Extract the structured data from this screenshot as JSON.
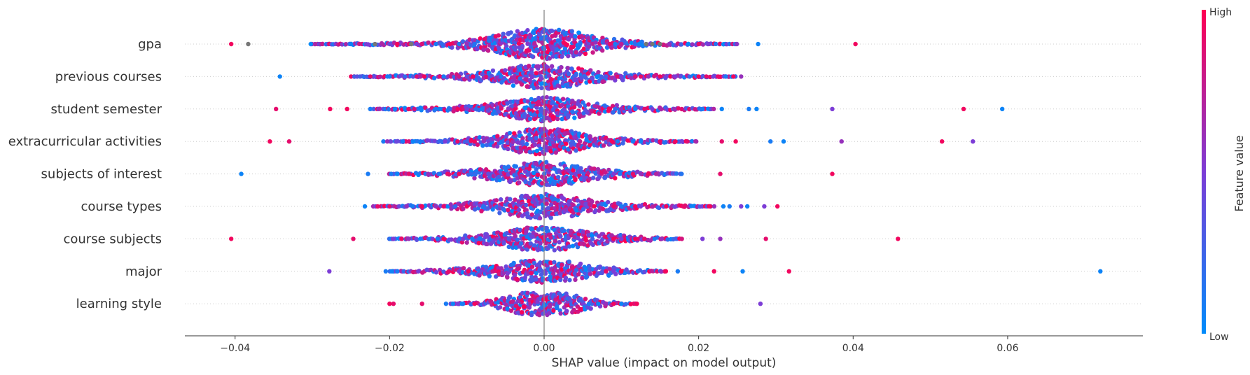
{
  "chart_data": {
    "type": "scatter",
    "subtype": "shap-beeswarm",
    "xlabel": "SHAP value (impact on model output)",
    "ylabel": "",
    "xlim": [
      -0.0465,
      0.0775
    ],
    "xticks": [
      -0.04,
      -0.02,
      0.0,
      0.02,
      0.04,
      0.06
    ],
    "xtick_labels": [
      "−0.04",
      "−0.02",
      "0.00",
      "0.02",
      "0.04",
      "0.06"
    ],
    "grid": false,
    "features": [
      "gpa",
      "previous courses",
      "student semester",
      "extracurricular activities",
      "subjects of interest",
      "course types",
      "course subjects",
      "major",
      "learning style"
    ],
    "colorbar": {
      "label": "Feature value",
      "high_label": "High",
      "low_label": "Low",
      "low_color": "#008bfb",
      "mid_color": "#7c3cd6",
      "high_color": "#ff0051",
      "missing_color": "#777777"
    },
    "series": [
      {
        "feature": "gpa",
        "points": [
          [
            -0.0405,
            0.95
          ],
          [
            -0.0383,
            null
          ],
          [
            -0.0302,
            0.0
          ],
          [
            -0.025,
            0.05
          ],
          [
            -0.0219,
            null
          ],
          [
            -0.02,
            0.45
          ],
          [
            -0.019,
            0.95
          ],
          [
            -0.0175,
            0.9
          ],
          [
            -0.0172,
            null
          ],
          [
            -0.0165,
            0.5
          ],
          [
            -0.0158,
            0.85
          ],
          [
            -0.014,
            0.1
          ],
          [
            -0.0132,
            0.2
          ],
          [
            -0.0122,
            0.95
          ],
          [
            -0.011,
            0.1
          ],
          [
            -0.01,
            0.6
          ],
          [
            -0.009,
            0.15
          ],
          [
            0.0085,
            0.9
          ],
          [
            0.0092,
            0.1
          ],
          [
            0.01,
            0.75
          ],
          [
            0.0118,
            0.2
          ],
          [
            0.0123,
            0.05
          ],
          [
            0.0132,
            null
          ],
          [
            0.014,
            null
          ],
          [
            0.015,
            null
          ],
          [
            0.0162,
            0.6
          ],
          [
            0.02,
            0.9
          ],
          [
            0.0212,
            0.5
          ],
          [
            0.0277,
            0.05
          ],
          [
            0.0403,
            0.95
          ]
        ],
        "density": [
          [
            -0.03,
            0.0
          ],
          [
            -0.015,
            0.15
          ],
          [
            -0.008,
            0.45
          ],
          [
            -0.004,
            1.0
          ],
          [
            0.0,
            1.25
          ],
          [
            0.004,
            1.0
          ],
          [
            0.008,
            0.45
          ],
          [
            0.015,
            0.12
          ],
          [
            0.025,
            0.0
          ]
        ]
      },
      {
        "feature": "previous courses",
        "points": [
          [
            -0.0342,
            0.05
          ],
          [
            -0.0225,
            0.9
          ],
          [
            -0.02,
            0.1
          ],
          [
            -0.018,
            0.2
          ],
          [
            -0.0165,
            0.85
          ],
          [
            -0.016,
            0.7
          ],
          [
            -0.0155,
            0.95
          ],
          [
            -0.0135,
            0.9
          ],
          [
            -0.013,
            0.1
          ],
          [
            -0.011,
            0.8
          ],
          [
            -0.01,
            0.4
          ],
          [
            -0.0092,
            0.95
          ],
          [
            0.008,
            0.3
          ],
          [
            0.0095,
            0.9
          ],
          [
            0.01,
            0.5
          ],
          [
            0.0118,
            0.85
          ],
          [
            0.0125,
            0.9
          ],
          [
            0.0135,
            0.6
          ],
          [
            0.015,
            0.95
          ],
          [
            0.017,
            0.5
          ],
          [
            0.02,
            0.95
          ],
          [
            0.021,
            0.9
          ],
          [
            0.0225,
            0.9
          ],
          [
            0.0235,
            0.1
          ],
          [
            0.0245,
            0.95
          ],
          [
            0.0255,
            0.6
          ]
        ],
        "density": [
          [
            -0.025,
            0.0
          ],
          [
            -0.012,
            0.2
          ],
          [
            -0.006,
            0.5
          ],
          [
            -0.003,
            0.85
          ],
          [
            0.0,
            1.0
          ],
          [
            0.003,
            0.85
          ],
          [
            0.006,
            0.5
          ],
          [
            0.012,
            0.2
          ],
          [
            0.025,
            0.0
          ]
        ]
      },
      {
        "feature": "student semester",
        "points": [
          [
            -0.0347,
            0.9
          ],
          [
            -0.0277,
            0.95
          ],
          [
            -0.0255,
            0.95
          ],
          [
            -0.0225,
            0.1
          ],
          [
            -0.0193,
            0.05
          ],
          [
            -0.0168,
            0.85
          ],
          [
            -0.014,
            0.1
          ],
          [
            -0.0135,
            0.05
          ],
          [
            -0.0112,
            0.95
          ],
          [
            -0.01,
            0.5
          ],
          [
            -0.0088,
            0.2
          ],
          [
            0.0085,
            0.95
          ],
          [
            0.0092,
            0.2
          ],
          [
            0.01,
            0.6
          ],
          [
            0.0118,
            0.1
          ],
          [
            0.013,
            0.9
          ],
          [
            0.014,
            0.5
          ],
          [
            0.0168,
            0.6
          ],
          [
            0.0205,
            0.1
          ],
          [
            0.023,
            0.05
          ],
          [
            0.0265,
            0.1
          ],
          [
            0.0275,
            0.05
          ],
          [
            0.0373,
            0.5
          ],
          [
            0.0543,
            0.95
          ],
          [
            0.0593,
            0.05
          ]
        ],
        "density": [
          [
            -0.022,
            0.0
          ],
          [
            -0.012,
            0.2
          ],
          [
            -0.006,
            0.45
          ],
          [
            -0.003,
            0.85
          ],
          [
            0.0,
            1.0
          ],
          [
            0.003,
            0.85
          ],
          [
            0.006,
            0.45
          ],
          [
            0.012,
            0.2
          ],
          [
            0.022,
            0.0
          ]
        ]
      },
      {
        "feature": "extracurricular activities",
        "points": [
          [
            -0.0355,
            0.95
          ],
          [
            -0.033,
            0.9
          ],
          [
            -0.0208,
            0.1
          ],
          [
            -0.0203,
            0.6
          ],
          [
            -0.0183,
            0.1
          ],
          [
            -0.0175,
            0.85
          ],
          [
            -0.017,
            0.05
          ],
          [
            -0.016,
            0.1
          ],
          [
            -0.0133,
            0.2
          ],
          [
            -0.0128,
            0.5
          ],
          [
            -0.0112,
            0.9
          ],
          [
            -0.01,
            0.3
          ],
          [
            -0.009,
            0.95
          ],
          [
            0.0088,
            0.95
          ],
          [
            0.0095,
            0.1
          ],
          [
            0.0115,
            0.1
          ],
          [
            0.0125,
            0.05
          ],
          [
            0.015,
            0.9
          ],
          [
            0.017,
            0.95
          ],
          [
            0.0185,
            0.9
          ],
          [
            0.023,
            0.9
          ],
          [
            0.0248,
            0.95
          ],
          [
            0.0293,
            0.1
          ],
          [
            0.031,
            0.05
          ],
          [
            0.0385,
            0.6
          ],
          [
            0.0515,
            0.95
          ],
          [
            0.0555,
            0.5
          ]
        ],
        "density": [
          [
            -0.02,
            0.0
          ],
          [
            -0.012,
            0.15
          ],
          [
            -0.006,
            0.45
          ],
          [
            -0.003,
            0.9
          ],
          [
            0.0,
            1.05
          ],
          [
            0.003,
            0.9
          ],
          [
            0.006,
            0.45
          ],
          [
            0.012,
            0.15
          ],
          [
            0.02,
            0.0
          ]
        ]
      },
      {
        "feature": "subjects of interest",
        "points": [
          [
            -0.0392,
            0.05
          ],
          [
            -0.0228,
            0.1
          ],
          [
            -0.0198,
            0.1
          ],
          [
            -0.019,
            0.05
          ],
          [
            -0.0175,
            0.9
          ],
          [
            -0.015,
            0.6
          ],
          [
            -0.0135,
            0.1
          ],
          [
            -0.0125,
            0.9
          ],
          [
            -0.011,
            0.95
          ],
          [
            -0.0095,
            0.2
          ],
          [
            0.009,
            0.5
          ],
          [
            0.0098,
            0.1
          ],
          [
            0.0115,
            0.9
          ],
          [
            0.0125,
            0.6
          ],
          [
            0.0135,
            0.95
          ],
          [
            0.0145,
            0.7
          ],
          [
            0.0228,
            0.9
          ],
          [
            0.0373,
            0.95
          ]
        ],
        "density": [
          [
            -0.02,
            0.0
          ],
          [
            -0.012,
            0.2
          ],
          [
            -0.006,
            0.5
          ],
          [
            -0.003,
            0.85
          ],
          [
            0.0,
            0.95
          ],
          [
            0.003,
            0.85
          ],
          [
            0.006,
            0.5
          ],
          [
            0.012,
            0.2
          ],
          [
            0.018,
            0.0
          ]
        ]
      },
      {
        "feature": "course types",
        "points": [
          [
            -0.0232,
            0.05
          ],
          [
            -0.02,
            0.9
          ],
          [
            -0.0178,
            0.6
          ],
          [
            -0.017,
            0.1
          ],
          [
            -0.0158,
            0.95
          ],
          [
            -0.014,
            0.6
          ],
          [
            -0.013,
            0.9
          ],
          [
            -0.0115,
            0.2
          ],
          [
            -0.01,
            0.95
          ],
          [
            0.009,
            0.9
          ],
          [
            0.01,
            0.1
          ],
          [
            0.0118,
            0.95
          ],
          [
            0.0125,
            0.5
          ],
          [
            0.0158,
            0.95
          ],
          [
            0.018,
            0.9
          ],
          [
            0.0215,
            0.95
          ],
          [
            0.0232,
            0.05
          ],
          [
            0.024,
            0.1
          ],
          [
            0.0255,
            0.5
          ],
          [
            0.0263,
            0.05
          ],
          [
            0.0285,
            0.5
          ],
          [
            0.0302,
            0.95
          ]
        ],
        "density": [
          [
            -0.022,
            0.0
          ],
          [
            -0.012,
            0.2
          ],
          [
            -0.006,
            0.5
          ],
          [
            -0.003,
            0.85
          ],
          [
            0.0,
            1.0
          ],
          [
            0.003,
            0.85
          ],
          [
            0.006,
            0.5
          ],
          [
            0.012,
            0.2
          ],
          [
            0.022,
            0.0
          ]
        ]
      },
      {
        "feature": "course subjects",
        "points": [
          [
            -0.0405,
            0.95
          ],
          [
            -0.0247,
            0.9
          ],
          [
            -0.0195,
            0.5
          ],
          [
            -0.0175,
            0.6
          ],
          [
            -0.0138,
            0.1
          ],
          [
            -0.013,
            0.95
          ],
          [
            -0.0105,
            0.5
          ],
          [
            -0.0093,
            0.1
          ],
          [
            0.009,
            0.95
          ],
          [
            0.01,
            0.5
          ],
          [
            0.0118,
            0.95
          ],
          [
            0.013,
            0.9
          ],
          [
            0.0143,
            0.1
          ],
          [
            0.0152,
            0.6
          ],
          [
            0.0205,
            0.5
          ],
          [
            0.0228,
            0.6
          ],
          [
            0.0287,
            0.9
          ],
          [
            0.0458,
            0.95
          ]
        ],
        "density": [
          [
            -0.02,
            0.0
          ],
          [
            -0.012,
            0.2
          ],
          [
            -0.006,
            0.5
          ],
          [
            -0.003,
            0.85
          ],
          [
            0.0,
            0.95
          ],
          [
            0.003,
            0.85
          ],
          [
            0.006,
            0.5
          ],
          [
            0.012,
            0.2
          ],
          [
            0.018,
            0.0
          ]
        ]
      },
      {
        "feature": "major",
        "points": [
          [
            -0.0278,
            0.5
          ],
          [
            -0.0205,
            0.1
          ],
          [
            -0.0197,
            0.05
          ],
          [
            -0.019,
            0.1
          ],
          [
            -0.0123,
            0.9
          ],
          [
            -0.011,
            0.5
          ],
          [
            -0.0098,
            0.95
          ],
          [
            0.008,
            0.9
          ],
          [
            0.009,
            0.5
          ],
          [
            0.01,
            0.95
          ],
          [
            0.0173,
            0.1
          ],
          [
            0.022,
            0.95
          ],
          [
            0.0257,
            0.05
          ],
          [
            0.0317,
            0.95
          ],
          [
            0.072,
            0.05
          ]
        ],
        "density": [
          [
            -0.02,
            0.0
          ],
          [
            -0.012,
            0.2
          ],
          [
            -0.006,
            0.45
          ],
          [
            -0.003,
            0.8
          ],
          [
            0.0,
            0.9
          ],
          [
            0.003,
            0.8
          ],
          [
            0.006,
            0.45
          ],
          [
            0.012,
            0.15
          ],
          [
            0.016,
            0.0
          ]
        ]
      },
      {
        "feature": "learning style",
        "points": [
          [
            -0.02,
            0.95
          ],
          [
            -0.0195,
            0.9
          ],
          [
            -0.0158,
            0.9
          ],
          [
            -0.0127,
            0.1
          ],
          [
            -0.0118,
            0.05
          ],
          [
            -0.0112,
            0.5
          ],
          [
            -0.0105,
            0.1
          ],
          [
            -0.009,
            0.95
          ],
          [
            0.0058,
            0.1
          ],
          [
            0.007,
            0.05
          ],
          [
            0.008,
            0.6
          ],
          [
            0.009,
            0.95
          ],
          [
            0.01,
            0.05
          ],
          [
            0.012,
            0.95
          ],
          [
            0.028,
            0.5
          ]
        ],
        "density": [
          [
            -0.012,
            0.0
          ],
          [
            -0.008,
            0.2
          ],
          [
            -0.005,
            0.5
          ],
          [
            -0.003,
            0.85
          ],
          [
            0.0,
            0.95
          ],
          [
            0.003,
            0.85
          ],
          [
            0.005,
            0.5
          ],
          [
            0.008,
            0.2
          ],
          [
            0.012,
            0.0
          ]
        ]
      }
    ]
  }
}
